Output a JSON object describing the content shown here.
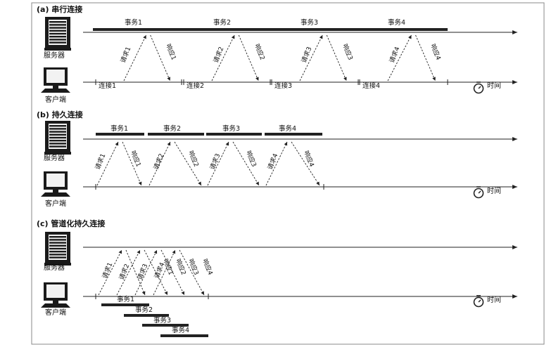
{
  "sections": {
    "a": {
      "title": "(a) 串行连接"
    },
    "b": {
      "title": "(b) 持久连接"
    },
    "c": {
      "title": "(c) 管道化持久连接"
    }
  },
  "labels": {
    "server": "服务器",
    "client": "客户端",
    "time": "时间",
    "transactions": [
      "事务1",
      "事务2",
      "事务3",
      "事务4"
    ],
    "requests": [
      "请求1",
      "请求2",
      "请求3",
      "请求4"
    ],
    "responses": [
      "响应1",
      "响应2",
      "响应3",
      "响应4"
    ],
    "connections": [
      "连接1",
      "连接2",
      "连接3",
      "连接4"
    ]
  },
  "icons": {
    "server": "server-icon",
    "client": "computer-monitor-icon",
    "clock": "stopwatch-icon"
  },
  "colors": {
    "line": "#222222",
    "bar": "#222222",
    "border": "#888888"
  }
}
